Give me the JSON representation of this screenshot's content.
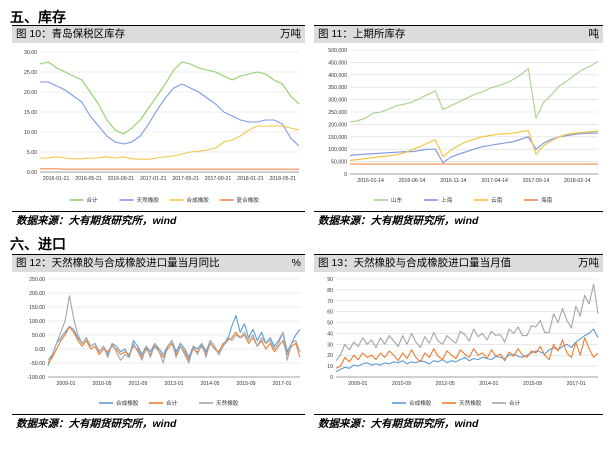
{
  "sections": [
    {
      "title": "五、库存"
    },
    {
      "title": "六、进口"
    }
  ],
  "charts": [
    {
      "title": "图 10：青岛保税区库存",
      "unit": "万吨",
      "source": "数据来源：大有期货研究所，wind"
    },
    {
      "title": "图 11：上期所库存",
      "unit": "吨",
      "source": "数据来源：大有期货研究所，wind"
    },
    {
      "title": "图 12：天然橡胶与合成橡胶进口量当月同比",
      "unit": "%",
      "source": "数据来源：大有期货研究所，wind"
    },
    {
      "title": "图 13：天然橡胶与合成橡胶进口量当月值",
      "unit": "万吨",
      "source": "数据来源：大有期货研究所，wind"
    }
  ],
  "chart_data": [
    {
      "type": "line",
      "ylim": [
        0,
        30
      ],
      "yticks": [
        "0.00",
        "5.00",
        "10.00",
        "15.00",
        "20.00",
        "25.00",
        "30.00"
      ],
      "xticks": [
        "2016-01-21",
        "2016-05-21",
        "2016-09-21",
        "2017-01-21",
        "2017-05-21",
        "2017-09-21",
        "2018-01-21",
        "2018-05-21"
      ],
      "legend": [
        "合计",
        "天然橡胶",
        "合成橡胶",
        "复合橡胶"
      ],
      "legend_position": "bottom",
      "grid": true,
      "series": [
        {
          "name": "合计",
          "color": "#8fd16b",
          "values": [
            27,
            27.5,
            26,
            25,
            24,
            23,
            20,
            17,
            13,
            10.5,
            9.5,
            11,
            13,
            16,
            19,
            22,
            25.5,
            27.5,
            27,
            26,
            25.5,
            25,
            24,
            23,
            24,
            24.5,
            25,
            24.5,
            23,
            22,
            19,
            17
          ]
        },
        {
          "name": "天然橡胶",
          "color": "#7d9be8",
          "values": [
            22.5,
            22.5,
            21.5,
            20.5,
            19,
            17.5,
            14,
            11.5,
            9,
            7.5,
            7,
            7.5,
            9,
            12,
            15.5,
            18.5,
            21,
            22,
            21,
            20,
            18.5,
            17,
            15,
            14,
            13,
            12.5,
            12.5,
            13,
            13,
            12,
            8.5,
            6.5
          ]
        },
        {
          "name": "合成橡胶",
          "color": "#f1c64a",
          "values": [
            3.5,
            3.5,
            3.8,
            3.5,
            3.3,
            3.3,
            3.5,
            3.5,
            3.8,
            3.5,
            3.8,
            3.3,
            3.2,
            3.2,
            3.5,
            3.8,
            4,
            4.5,
            5,
            5.2,
            5.5,
            6,
            7.5,
            8,
            9,
            10.5,
            11.5,
            11.5,
            11.5,
            11.5,
            11,
            10.5
          ]
        },
        {
          "name": "复合橡胶",
          "color": "#f08a4b",
          "values": [
            0.8,
            0.8,
            0.8,
            0.7,
            0.7,
            0.7,
            0.7,
            0.7,
            0.7,
            0.7,
            0.7,
            0.7,
            0.7,
            0.7,
            0.7,
            0.7,
            0.7,
            0.7,
            0.7,
            0.7,
            0.7,
            0.7,
            0.7,
            0.7,
            0.7,
            0.7,
            0.7,
            0.7,
            0.7,
            0.7,
            0.7,
            0.7
          ]
        }
      ]
    },
    {
      "type": "line",
      "ylim": [
        0,
        500000
      ],
      "yticks": [
        "0",
        "50,000",
        "100,000",
        "150,000",
        "200,000",
        "250,000",
        "300,000",
        "350,000",
        "400,000",
        "450,000",
        "500,000"
      ],
      "xticks": [
        "2016-01-14",
        "2016-06-14",
        "2016-11-14",
        "2017-04-14",
        "2017-09-14",
        "2018-02-14"
      ],
      "legend": [
        "山东",
        "上海",
        "云南",
        "海南"
      ],
      "legend_position": "bottom",
      "grid": true,
      "series": [
        {
          "name": "山东",
          "color": "#a5d38a",
          "values": [
            210000,
            215000,
            225000,
            245000,
            250000,
            262000,
            275000,
            282000,
            290000,
            305000,
            320000,
            335000,
            260000,
            275000,
            290000,
            305000,
            320000,
            330000,
            345000,
            355000,
            365000,
            380000,
            400000,
            425000,
            225000,
            290000,
            320000,
            355000,
            375000,
            400000,
            420000,
            435000,
            455000
          ]
        },
        {
          "name": "上海",
          "color": "#7d96e0",
          "values": [
            75000,
            78000,
            80000,
            82000,
            84000,
            86000,
            88000,
            90000,
            90000,
            95000,
            100000,
            100000,
            45000,
            68000,
            80000,
            90000,
            100000,
            110000,
            115000,
            120000,
            125000,
            130000,
            140000,
            150000,
            100000,
            125000,
            140000,
            150000,
            155000,
            160000,
            163000,
            165000,
            165000
          ]
        },
        {
          "name": "云南",
          "color": "#f0c33e",
          "values": [
            55000,
            58000,
            62000,
            66000,
            70000,
            73000,
            78000,
            85000,
            98000,
            110000,
            125000,
            138000,
            70000,
            95000,
            115000,
            130000,
            140000,
            150000,
            155000,
            160000,
            162000,
            165000,
            170000,
            175000,
            80000,
            115000,
            135000,
            150000,
            160000,
            165000,
            168000,
            170000,
            172000
          ]
        },
        {
          "name": "海南",
          "color": "#f08a4b",
          "values": [
            40000,
            40000,
            40000,
            40000,
            40000,
            40000,
            40000,
            40000,
            40000,
            40000,
            40000,
            40000,
            40000,
            40000,
            40000,
            40000,
            40000,
            40000,
            40000,
            40000,
            40000,
            40000,
            40000,
            40000,
            40000,
            40000,
            40000,
            40000,
            40000,
            40000,
            40000,
            40000,
            40000
          ]
        }
      ]
    },
    {
      "type": "line",
      "ylim": [
        -100,
        250
      ],
      "yticks": [
        "-100.00",
        "-50.00",
        "0.00",
        "50.00",
        "100.00",
        "150.00",
        "200.00",
        "250.00"
      ],
      "xticks": [
        "2009-01",
        "2010-05",
        "2011-09",
        "2013-01",
        "2014-05",
        "2015-09",
        "2017-01"
      ],
      "legend": [
        "合成橡胶",
        "合计",
        "天然橡胶"
      ],
      "legend_position": "bottom",
      "grid": true,
      "series": [
        {
          "name": "合成橡胶",
          "color": "#5b9bd5",
          "values": [
            -60,
            -20,
            20,
            40,
            60,
            80,
            70,
            40,
            20,
            40,
            10,
            20,
            -10,
            10,
            -20,
            20,
            10,
            -10,
            0,
            -30,
            30,
            10,
            -20,
            10,
            -10,
            20,
            0,
            -20,
            10,
            30,
            -10,
            20,
            0,
            -30,
            10,
            0,
            20,
            -10,
            30,
            10,
            -20,
            10,
            30,
            80,
            120,
            60,
            90,
            40,
            70,
            30,
            60,
            20,
            40,
            10,
            30,
            60,
            -10,
            20,
            50,
            70
          ]
        },
        {
          "name": "合计",
          "color": "#ed7d31",
          "values": [
            -50,
            -30,
            0,
            30,
            50,
            80,
            60,
            30,
            10,
            30,
            0,
            10,
            -20,
            0,
            -10,
            10,
            0,
            -20,
            -10,
            -20,
            10,
            0,
            -30,
            0,
            -20,
            10,
            -10,
            -30,
            0,
            20,
            -20,
            10,
            -10,
            -40,
            0,
            -10,
            10,
            -20,
            20,
            0,
            -10,
            20,
            30,
            40,
            60,
            40,
            50,
            20,
            40,
            10,
            30,
            0,
            20,
            -10,
            10,
            30,
            -20,
            10,
            20,
            -30
          ]
        },
        {
          "name": "天然橡胶",
          "color": "#a5a5a5",
          "values": [
            -40,
            -20,
            20,
            60,
            100,
            190,
            110,
            50,
            20,
            40,
            10,
            20,
            -10,
            10,
            -30,
            20,
            -10,
            -40,
            -20,
            -30,
            20,
            -10,
            -40,
            10,
            -30,
            20,
            -10,
            -50,
            10,
            30,
            -30,
            10,
            -20,
            -50,
            10,
            -20,
            20,
            -30,
            30,
            10,
            -20,
            10,
            40,
            30,
            50,
            40,
            60,
            30,
            50,
            10,
            40,
            20,
            30,
            0,
            20,
            60,
            -40,
            20,
            30,
            -10
          ]
        }
      ]
    },
    {
      "type": "line",
      "ylim": [
        0,
        90
      ],
      "yticks": [
        "0",
        "10",
        "20",
        "30",
        "40",
        "50",
        "60",
        "70",
        "80",
        "90"
      ],
      "xticks": [
        "2009-01",
        "2010-09",
        "2012-05",
        "2014-01",
        "2015-09",
        "2017-01"
      ],
      "legend": [
        "合成橡胶",
        "天然橡胶",
        "合计"
      ],
      "legend_position": "bottom",
      "grid": true,
      "series": [
        {
          "name": "合成橡胶",
          "color": "#5b9bd5",
          "values": [
            5,
            7,
            9,
            8,
            11,
            10,
            12,
            13,
            11,
            12,
            11,
            13,
            12,
            14,
            13,
            15,
            12,
            14,
            13,
            15,
            14,
            12,
            15,
            14,
            16,
            13,
            15,
            14,
            16,
            18,
            15,
            17,
            16,
            18,
            17,
            16,
            19,
            18,
            17,
            20,
            21,
            19,
            18,
            20,
            22,
            24,
            23,
            21,
            25,
            27,
            25,
            28,
            30,
            27,
            32,
            35,
            38,
            40,
            44,
            36
          ]
        },
        {
          "name": "天然橡胶",
          "color": "#ed7d31",
          "values": [
            8,
            10,
            18,
            14,
            20,
            16,
            22,
            18,
            20,
            16,
            22,
            18,
            24,
            20,
            15,
            22,
            17,
            25,
            18,
            14,
            22,
            18,
            26,
            19,
            16,
            24,
            20,
            17,
            25,
            21,
            18,
            26,
            20,
            22,
            17,
            25,
            19,
            21,
            15,
            23,
            19,
            26,
            20,
            18,
            24,
            22,
            28,
            20,
            16,
            30,
            24,
            34,
            22,
            18,
            32,
            20,
            36,
            26,
            18,
            22
          ]
        },
        {
          "name": "合计",
          "color": "#a5a5a5",
          "values": [
            15,
            20,
            30,
            25,
            32,
            28,
            36,
            30,
            34,
            27,
            36,
            30,
            38,
            33,
            28,
            38,
            30,
            40,
            32,
            27,
            37,
            31,
            41,
            33,
            30,
            38,
            34,
            31,
            42,
            39,
            33,
            44,
            37,
            40,
            34,
            42,
            38,
            39,
            32,
            44,
            40,
            46,
            38,
            38,
            47,
            46,
            52,
            41,
            41,
            58,
            50,
            63,
            52,
            45,
            65,
            56,
            75,
            67,
            85,
            58
          ]
        }
      ]
    }
  ]
}
